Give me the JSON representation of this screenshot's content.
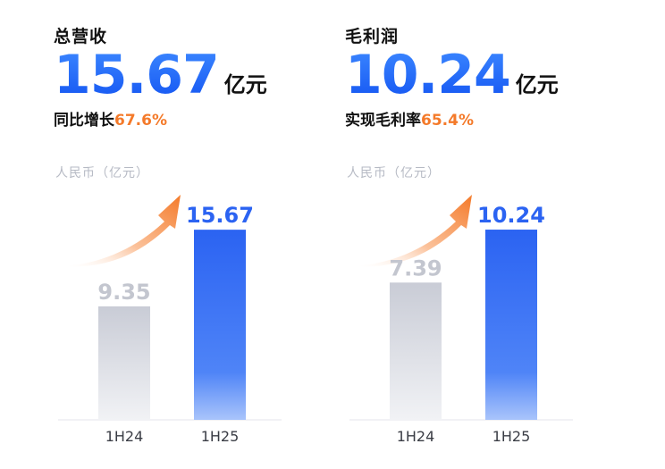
{
  "panels": [
    {
      "title": "总营收",
      "value": "15.67",
      "unit": "亿元",
      "sub_prefix": "同比增长",
      "sub_highlight": "67.6%",
      "axis_unit": "人民币（亿元）"
    },
    {
      "title": "毛利润",
      "value": "10.24",
      "unit": "亿元",
      "sub_prefix": "实现毛利率",
      "sub_highlight": "65.4%",
      "axis_unit": "人民币（亿元）"
    }
  ],
  "colors": {
    "current_bar": "#2b63f2",
    "previous_bar": "#c9ccd6",
    "highlight": "#f47a2a",
    "arrow": "#f47a2a"
  },
  "chart_data": [
    {
      "type": "bar",
      "categories": [
        "1H24",
        "1H25"
      ],
      "values": [
        9.35,
        15.67
      ],
      "labels": [
        "9.35",
        "15.67"
      ],
      "ylabel": "人民币（亿元）",
      "ylim": [
        0,
        17.3
      ],
      "grid": false
    },
    {
      "type": "bar",
      "categories": [
        "1H24",
        "1H25"
      ],
      "values": [
        7.39,
        10.24
      ],
      "labels": [
        "7.39",
        "10.24"
      ],
      "ylabel": "人民币（亿元）",
      "ylim": [
        0,
        11.3
      ],
      "grid": false
    }
  ]
}
